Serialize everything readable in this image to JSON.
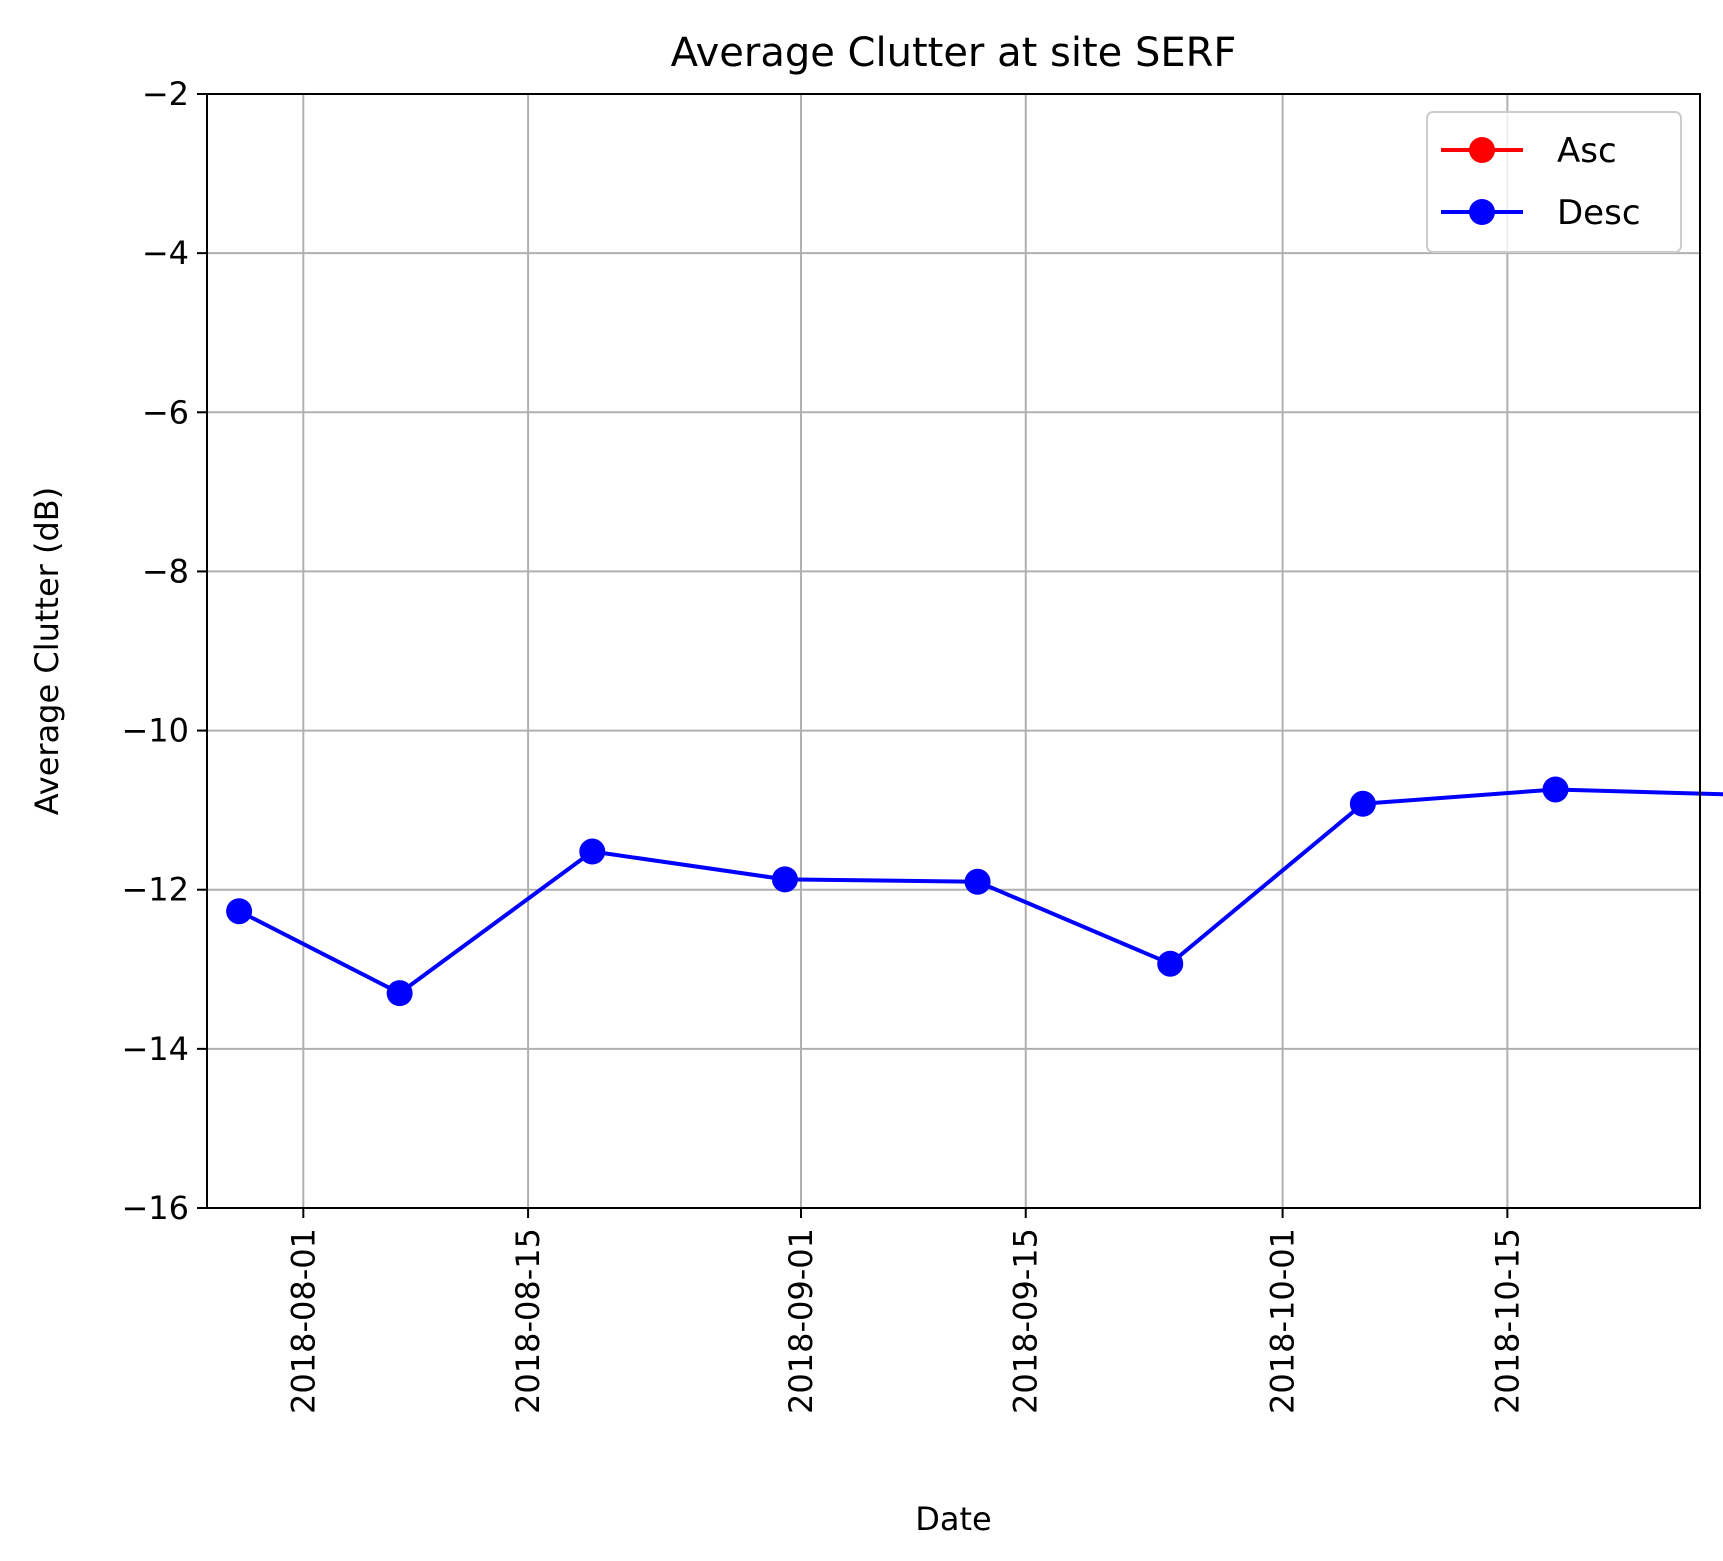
{
  "chart_data": {
    "type": "line",
    "title": "Average Clutter at site SERF",
    "xlabel": "Date",
    "ylabel": "Average Clutter (dB)",
    "xlim": [
      "2018-07-26",
      "2018-10-27"
    ],
    "ylim": [
      -16,
      -2
    ],
    "xticks": [
      "2018-08-01",
      "2018-08-15",
      "2018-09-01",
      "2018-09-15",
      "2018-10-01",
      "2018-10-15"
    ],
    "yticks": [
      -2,
      -4,
      -6,
      -8,
      -10,
      -12,
      -14,
      -16
    ],
    "ytick_labels": [
      "−2",
      "−4",
      "−6",
      "−8",
      "−10",
      "−12",
      "−14",
      "−16"
    ],
    "grid": true,
    "legend_position": "top-right",
    "series": [
      {
        "name": "Asc",
        "color": "#ff0000",
        "marker": "circle",
        "x": [],
        "y": []
      },
      {
        "name": "Desc",
        "color": "#0000ff",
        "marker": "circle",
        "x": [
          "2018-07-28",
          "2018-08-07",
          "2018-08-19",
          "2018-08-31",
          "2018-09-12",
          "2018-09-24",
          "2018-10-06",
          "2018-10-18",
          "2018-10-30"
        ],
        "y": [
          -12.27,
          -13.3,
          -11.52,
          -11.87,
          -11.9,
          -12.93,
          -10.92,
          -10.74,
          -10.81
        ]
      }
    ]
  }
}
